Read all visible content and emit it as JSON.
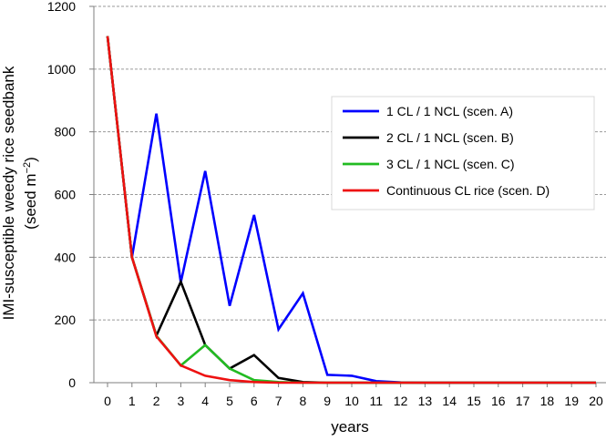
{
  "chart_data": {
    "type": "line",
    "title": "",
    "xlabel": "years",
    "ylabel_line1": "IMI-susceptible weedy rice seedbank",
    "ylabel_line2_prefix": "(seed m",
    "ylabel_line2_sup": "−2",
    "ylabel_line2_suffix": ")",
    "xlim": [
      0,
      20
    ],
    "ylim": [
      0,
      1200
    ],
    "xticks": [
      "0",
      "1",
      "2",
      "3",
      "4",
      "5",
      "6",
      "7",
      "8",
      "9",
      "10",
      "11",
      "12",
      "13",
      "14",
      "15",
      "16",
      "17",
      "18",
      "19",
      "20"
    ],
    "yticks": [
      "0",
      "200",
      "400",
      "600",
      "800",
      "1000",
      "1200"
    ],
    "grid": true,
    "legend_position": "right",
    "x": [
      0,
      1,
      2,
      3,
      4,
      5,
      6,
      7,
      8,
      9,
      10,
      11,
      12,
      13,
      14,
      15,
      16,
      17,
      18,
      19,
      20
    ],
    "series": [
      {
        "name": "1 CL / 1 NCL (scen. A)",
        "color": "#0000ff",
        "values": [
          1105,
          400,
          858,
          320,
          675,
          245,
          535,
          170,
          285,
          25,
          22,
          5,
          1,
          0,
          0,
          0,
          0,
          0,
          0,
          0,
          0
        ]
      },
      {
        "name": "2 CL / 1 NCL (scen. B)",
        "color": "#000000",
        "values": [
          1105,
          400,
          150,
          322,
          120,
          45,
          88,
          15,
          2,
          0,
          0,
          0,
          0,
          0,
          0,
          0,
          0,
          0,
          0,
          0,
          0
        ]
      },
      {
        "name": "3 CL / 1 NCL (scen. C)",
        "color": "#22bb22",
        "values": [
          1105,
          400,
          150,
          55,
          120,
          45,
          8,
          2,
          0,
          0,
          0,
          0,
          0,
          0,
          0,
          0,
          0,
          0,
          0,
          0,
          0
        ]
      },
      {
        "name": "Continuous CL rice (scen. D)",
        "color": "#ee1111",
        "values": [
          1105,
          400,
          148,
          55,
          22,
          8,
          2,
          0,
          0,
          0,
          0,
          0,
          0,
          0,
          0,
          0,
          0,
          0,
          0,
          0,
          0
        ]
      }
    ]
  }
}
